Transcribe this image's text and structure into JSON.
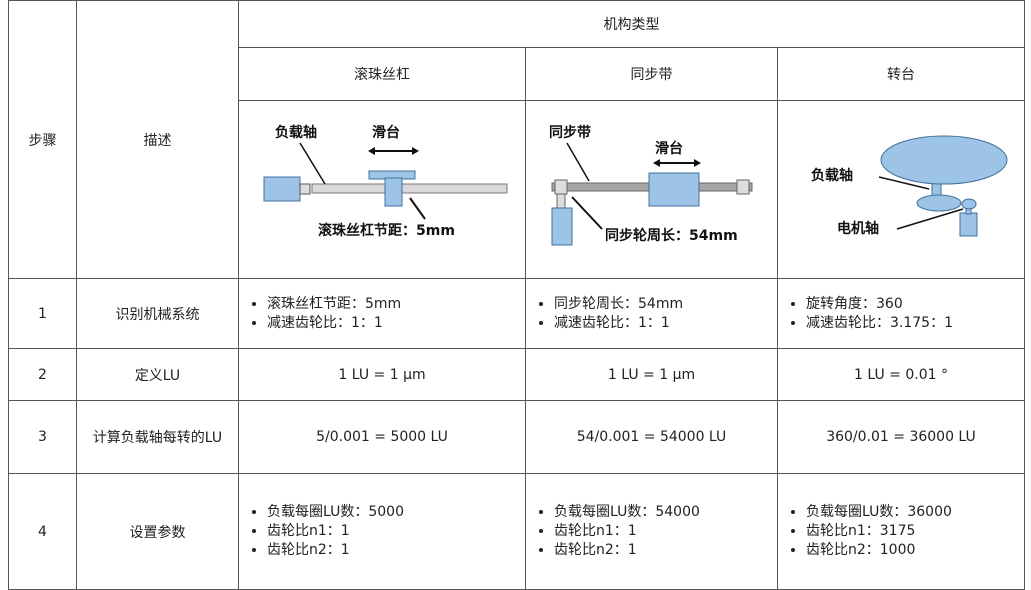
{
  "header": {
    "group": "机构类型",
    "step": "步骤",
    "desc": "描述",
    "types": [
      "滚珠丝杠",
      "同步带",
      "转台"
    ]
  },
  "diagrams": [
    {
      "labels": [
        "负载轴",
        "滑台",
        "滚珠丝杠节距：5mm"
      ]
    },
    {
      "labels": [
        "同步带",
        "滑台",
        "同步轮周长：54mm"
      ]
    },
    {
      "labels": [
        "负载轴",
        "电机轴"
      ]
    }
  ],
  "rows": [
    {
      "step": "1",
      "desc": "识别机械系统",
      "cells": [
        [
          "滚珠丝杠节距：5mm",
          "减速齿轮比：1：1"
        ],
        [
          "同步轮周长：54mm",
          "减速齿轮比：1：1"
        ],
        [
          "旋转角度：360",
          "减速齿轮比：3.175：1"
        ]
      ]
    },
    {
      "step": "2",
      "desc": "定义LU",
      "cells": [
        "1 LU = 1 μm",
        "1 LU = 1 μm",
        "1 LU = 0.01 °"
      ]
    },
    {
      "step": "3",
      "desc": "计算负载轴每转的LU",
      "cells": [
        "5/0.001 = 5000 LU",
        "54/0.001 = 54000 LU",
        "360/0.01 = 36000 LU"
      ]
    },
    {
      "step": "4",
      "desc": "设置参数",
      "cells": [
        [
          "负载每圈LU数：5000",
          "齿轮比n1：1",
          "齿轮比n2：1"
        ],
        [
          "负载每圈LU数：54000",
          "齿轮比n1：1",
          "齿轮比n2：1"
        ],
        [
          "负载每圈LU数：36000",
          "齿轮比n1：3175",
          "齿轮比n2：1000"
        ]
      ]
    }
  ]
}
